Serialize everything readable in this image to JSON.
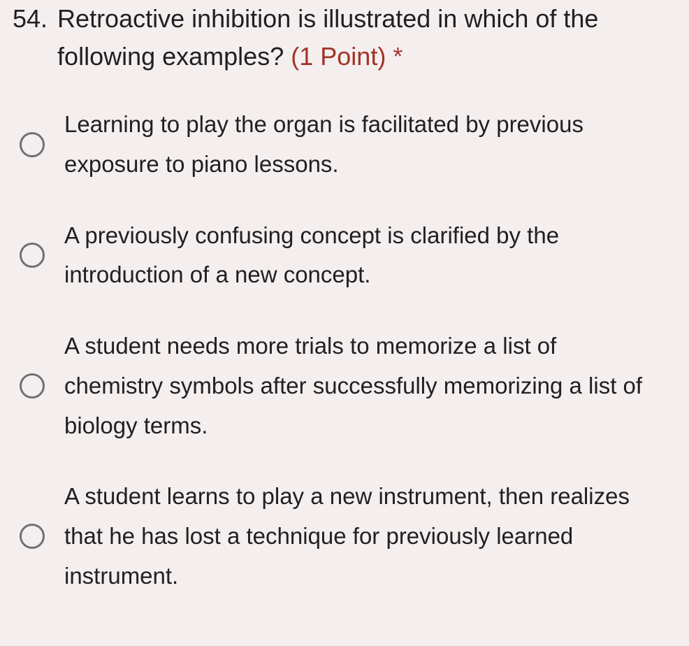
{
  "question": {
    "number": "54.",
    "text": "Retroactive inhibition is illustrated in which of the following examples?",
    "points": "(1 Point)",
    "required_marker": "*"
  },
  "options": [
    {
      "text": "Learning to play the organ is facilitated by previous exposure to piano lessons."
    },
    {
      "text": "A previously confusing concept is clarified by the introduction of a new concept."
    },
    {
      "text": "A student needs more trials to memorize a list of chemistry symbols after successfully memorizing a list of biology terms."
    },
    {
      "text": "A student learns to play a new instrument, then realizes that he has lost a technique for previously learned instrument."
    }
  ],
  "styling": {
    "background_color": "#f5eeee",
    "question_fontsize": 36,
    "option_fontsize": 33,
    "text_color": "#202020",
    "points_color": "#a03326",
    "asterisk_color": "#a73838",
    "radio_border_color": "#707070",
    "radio_size": 36,
    "radio_border_width": 3,
    "line_height_question": 1.5,
    "line_height_option": 1.72
  }
}
